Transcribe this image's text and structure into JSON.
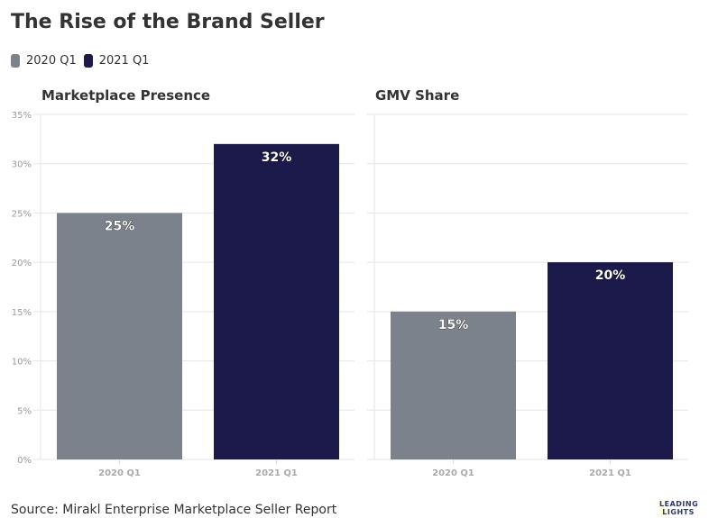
{
  "title": "The Rise of the Brand Seller",
  "legend": [
    {
      "label": "2020 Q1",
      "color": "#7c828c"
    },
    {
      "label": "2021 Q1",
      "color": "#1b1a4a"
    }
  ],
  "source": "Source: Mirakl Enterprise Marketplace Seller Report",
  "logo": {
    "line1": "LEADING",
    "line2": "LIGHTS"
  },
  "chart_data": [
    {
      "type": "bar",
      "title": "Marketplace Presence",
      "categories": [
        "2020 Q1",
        "2021 Q1"
      ],
      "values": [
        25,
        32
      ],
      "data_labels": [
        "25%",
        "32%"
      ],
      "ylim": [
        0,
        35
      ],
      "yticks": [
        "0%",
        "5%",
        "10%",
        "15%",
        "20%",
        "25%",
        "30%",
        "35%"
      ],
      "grid": true
    },
    {
      "type": "bar",
      "title": "GMV Share",
      "categories": [
        "2020 Q1",
        "2021 Q1"
      ],
      "values": [
        15,
        20
      ],
      "data_labels": [
        "15%",
        "20%"
      ],
      "ylim": [
        0,
        35
      ],
      "grid": true
    }
  ]
}
